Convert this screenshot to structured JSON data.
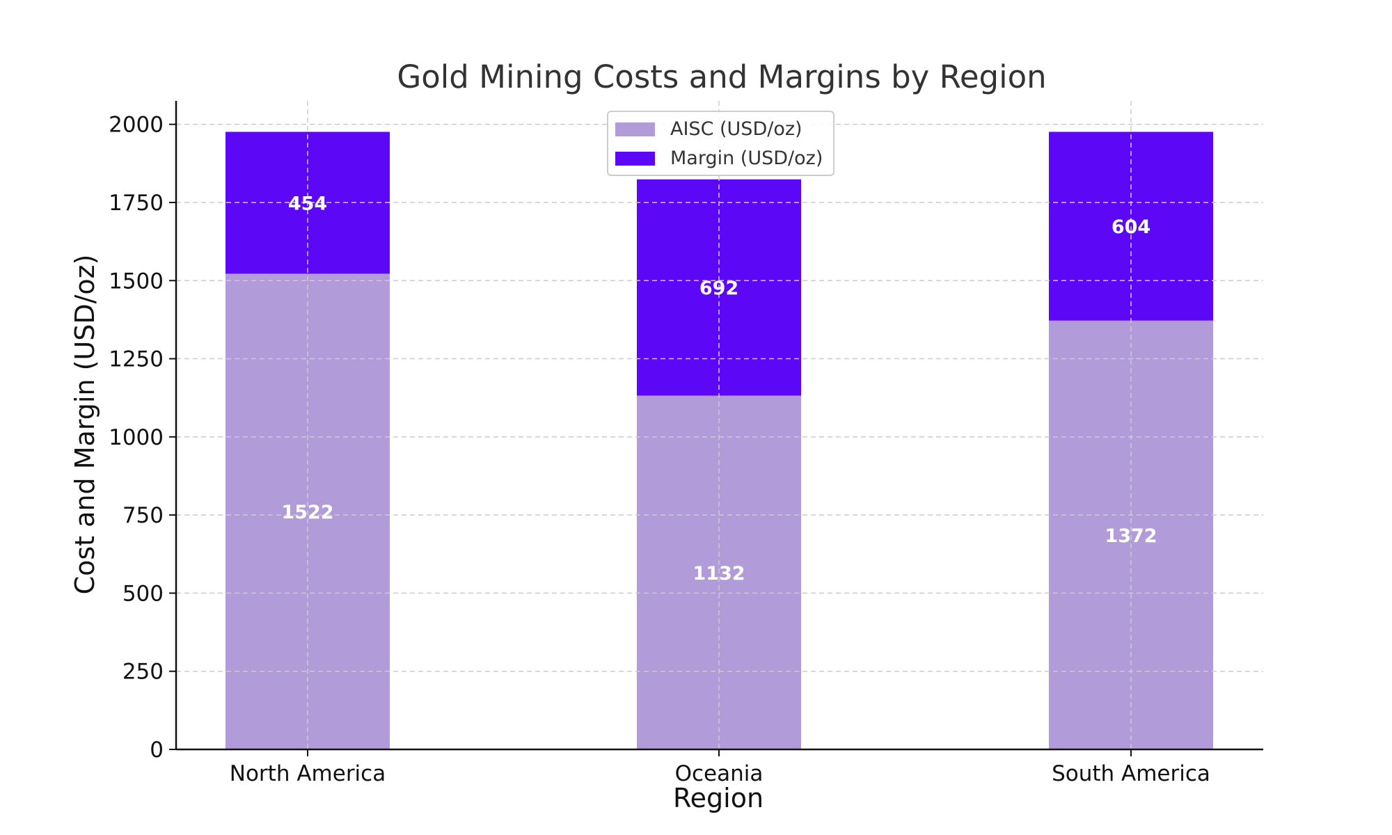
{
  "chart_data": {
    "type": "bar",
    "stacked": true,
    "title": "Gold Mining Costs and Margins by Region",
    "xlabel": "Region",
    "ylabel": "Cost and Margin (USD/oz)",
    "categories": [
      "North America",
      "Oceania",
      "South America"
    ],
    "series": [
      {
        "name": "AISC (USD/oz)",
        "values": [
          1522,
          1132,
          1372
        ],
        "color": "#b19cd9"
      },
      {
        "name": "Margin (USD/oz)",
        "values": [
          454,
          692,
          604
        ],
        "color": "#5c07f5"
      }
    ],
    "ylim": [
      0,
      2075
    ],
    "yticks": [
      0,
      250,
      500,
      750,
      1000,
      1250,
      1500,
      1750,
      2000
    ],
    "grid": true,
    "legend_position": "top-center"
  }
}
